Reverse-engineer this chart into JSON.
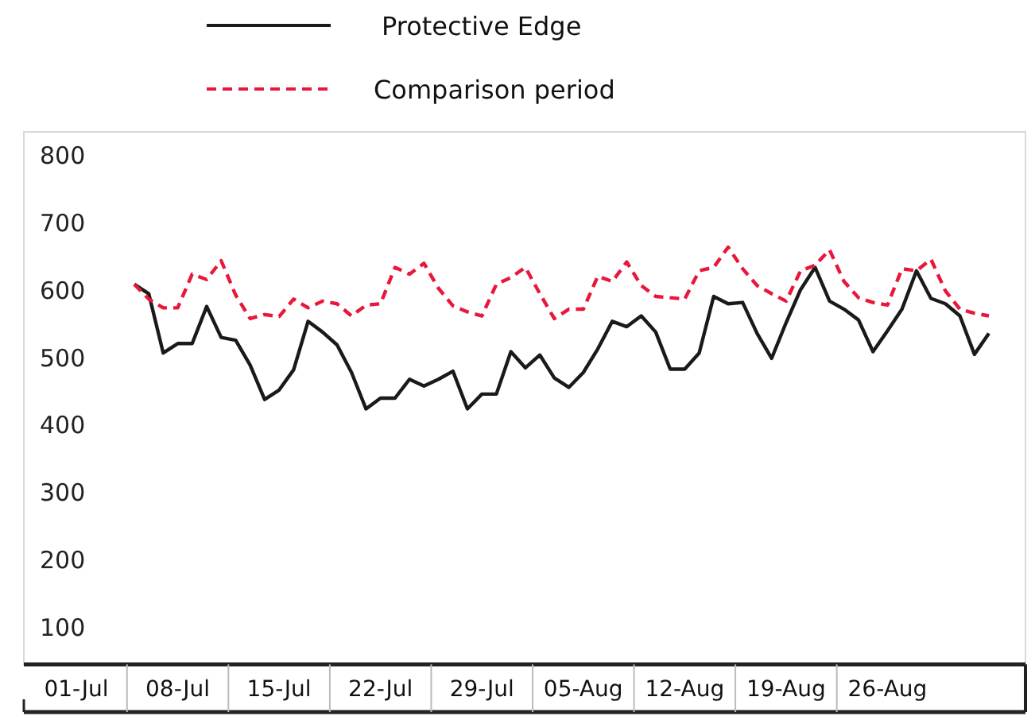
{
  "chart_data": {
    "type": "line",
    "categories": [
      "01-Jul",
      null,
      null,
      null,
      null,
      null,
      null,
      "08-Jul",
      null,
      null,
      null,
      null,
      null,
      null,
      "15-Jul",
      null,
      null,
      null,
      null,
      null,
      null,
      "22-Jul",
      null,
      null,
      null,
      null,
      null,
      null,
      "29-Jul",
      null,
      null,
      null,
      null,
      null,
      null,
      "05-Aug",
      null,
      null,
      null,
      null,
      null,
      null,
      "12-Aug",
      null,
      null,
      null,
      null,
      null,
      null,
      "19-Aug",
      null,
      null,
      null,
      null,
      null,
      null,
      "26-Aug",
      null,
      null,
      null,
      null,
      null,
      null,
      null
    ],
    "series": [
      {
        "name": "Protective Edge",
        "color": "#1a1a1a",
        "line_style": "solid",
        "values": [
          null,
          null,
          null,
          null,
          609,
          595,
          507,
          521,
          521,
          576,
          530,
          526,
          489,
          438,
          452,
          482,
          554,
          538,
          519,
          478,
          424,
          440,
          440,
          468,
          458,
          468,
          480,
          424,
          446,
          446,
          509,
          485,
          504,
          470,
          456,
          478,
          513,
          554,
          546,
          562,
          538,
          483,
          483,
          507,
          591,
          580,
          582,
          536,
          499,
          552,
          601,
          634,
          584,
          572,
          556,
          509,
          540,
          572,
          629,
          588,
          580,
          562,
          505,
          536
        ]
      },
      {
        "name": "Comparison period",
        "color": "#e8173b",
        "line_style": "dashed",
        "values": [
          null,
          null,
          null,
          null,
          609,
          587,
          574,
          574,
          624,
          616,
          644,
          593,
          558,
          564,
          561,
          587,
          574,
          584,
          580,
          562,
          578,
          580,
          634,
          624,
          640,
          603,
          577,
          568,
          562,
          609,
          619,
          634,
          595,
          558,
          572,
          572,
          621,
          613,
          642,
          607,
          591,
          589,
          587,
          629,
          634,
          664,
          632,
          607,
          595,
          584,
          629,
          637,
          660,
          613,
          589,
          582,
          578,
          632,
          629,
          646,
          599,
          572,
          566,
          562
        ]
      }
    ],
    "ylim": [
      45,
      835
    ],
    "yticks": [
      100,
      200,
      300,
      400,
      500,
      600,
      700,
      800
    ],
    "grid": false,
    "legend": "top",
    "marker": "none"
  }
}
